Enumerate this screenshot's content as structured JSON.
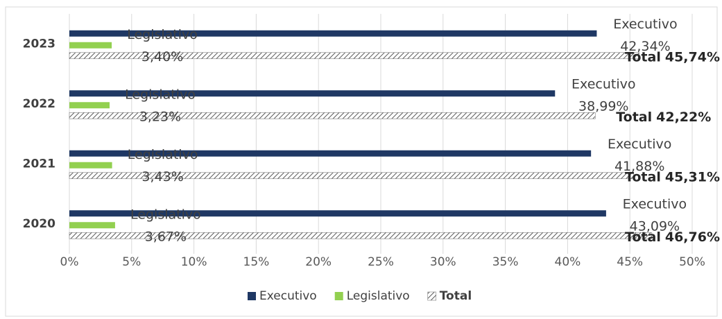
{
  "chart_data": {
    "type": "hbar",
    "categories": [
      "2023",
      "2022",
      "2021",
      "2020"
    ],
    "series": [
      {
        "name": "Executivo",
        "color": "#1f3864",
        "values": [
          42.34,
          38.99,
          41.88,
          43.09
        ],
        "value_labels": [
          "42,34%",
          "38,99%",
          "41,88%",
          "43,09%"
        ]
      },
      {
        "name": "Legislativo",
        "color": "#92d050",
        "values": [
          3.4,
          3.23,
          3.43,
          3.67
        ],
        "value_labels": [
          "3,40%",
          "3,23%",
          "3,43%",
          "3,67%"
        ]
      },
      {
        "name": "Total",
        "color": "#595959",
        "pattern": "hatch",
        "values": [
          45.74,
          42.22,
          45.31,
          46.76
        ],
        "value_labels": [
          "45,74%",
          "42,22%",
          "45,31%",
          "46,76%"
        ]
      }
    ],
    "xlim": [
      0,
      50
    ],
    "xticks": [
      {
        "value": 0,
        "label": "0%"
      },
      {
        "value": 5,
        "label": "5%"
      },
      {
        "value": 10,
        "label": "10%"
      },
      {
        "value": 15,
        "label": "15%"
      },
      {
        "value": 20,
        "label": "20%"
      },
      {
        "value": 25,
        "label": "25%"
      },
      {
        "value": 30,
        "label": "30%"
      },
      {
        "value": 35,
        "label": "35%"
      },
      {
        "value": 40,
        "label": "40%"
      },
      {
        "value": 45,
        "label": "45%"
      },
      {
        "value": 50,
        "label": "50%"
      }
    ],
    "grid": true,
    "legend": "bottom"
  }
}
